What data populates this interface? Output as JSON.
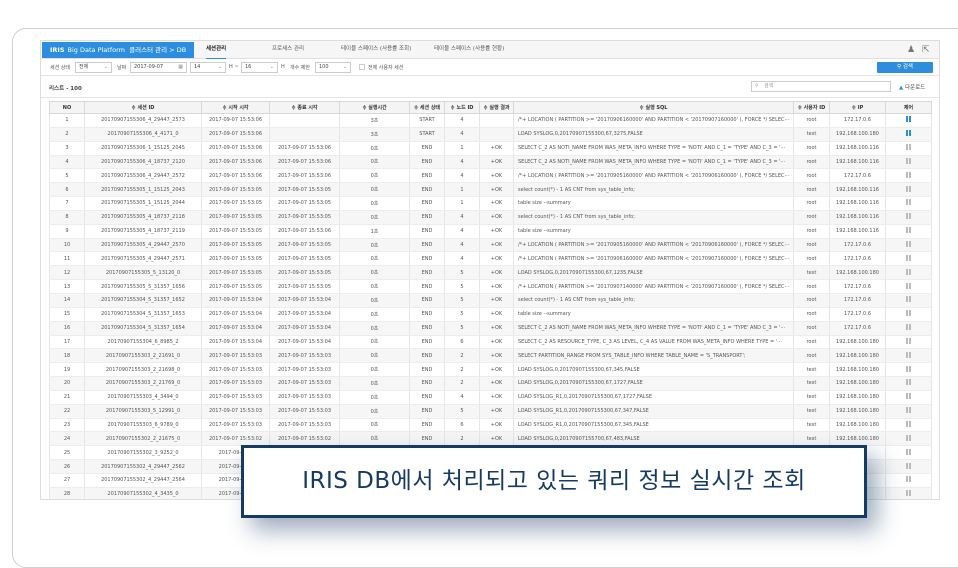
{
  "header": {
    "logo": "IRIS",
    "platform": "Big Data Platform",
    "breadcrumb_cluster": "클러스터 관리",
    "breadcrumb_sep": ">",
    "breadcrumb_db": "DB",
    "tabs": [
      {
        "label": "세션관리",
        "active": true
      },
      {
        "label": "프로세스 관리"
      },
      {
        "label": "테이블 스페이스 (사용률 조회)"
      },
      {
        "label": "테이블 스페이스 (사용률 현황)"
      }
    ],
    "user_icon": "user-icon",
    "logout_icon": "logout-icon"
  },
  "filter": {
    "session_state_label": "세션 상태",
    "session_state_value": "전체",
    "date_label": "날짜",
    "date_value": "2017-09-07",
    "hour_from": "14",
    "hour_sep": "H ~",
    "hour_to": "16",
    "hour_unit": "H",
    "limit_label": "개수 제한",
    "limit_value": "100",
    "all_users_label": "전체 사용자 세션",
    "search_button": "검색"
  },
  "list": {
    "title": "리스트 - 100",
    "search_placeholder": "검색",
    "download": "다운로드"
  },
  "table": {
    "columns": [
      "NO",
      "세션 ID",
      "시작 시각",
      "종료 시각",
      "실행시간",
      "세션 상태",
      "노드 ID",
      "실행 결과",
      "실행 SQL",
      "사용자 ID",
      "IP",
      "제어"
    ],
    "sortable_prefix": "≑",
    "rows": [
      [
        "1",
        "20170907155306_4_29447_2573",
        "2017-09-07 15:53:06",
        "",
        "3초",
        "START",
        "4",
        "",
        "/*+ LOCATION ( PARTITION >= '20170906160000' AND PARTITION < '20170907160000' ), FORCE */ SELEC···",
        "root",
        "172.17.0.6",
        "active"
      ],
      [
        "2",
        "20170907155306_4_4171_0",
        "2017-09-07 15:53:06",
        "",
        "3초",
        "START",
        "4",
        "",
        "LOAD SYSLOG,0,20170907155300,67,3275,FALSE",
        "test",
        "192.168.100.180",
        "active"
      ],
      [
        "3",
        "20170907155306_1_15125_2045",
        "2017-09-07 15:53:06",
        "2017-09-07 15:53:06",
        "0초",
        "END",
        "1",
        "+OK",
        "SELECT C_2 AS NOTI_NAME FROM WAS_META_INFO WHERE TYPE = 'NOTI' AND C_1 = 'TYPE' AND C_3 = '···",
        "root",
        "192.168.100.116",
        "idle"
      ],
      [
        "4",
        "20170907155306_4_18737_2120",
        "2017-09-07 15:53:06",
        "2017-09-07 15:53:06",
        "0초",
        "END",
        "4",
        "+OK",
        "SELECT C_2 AS NOTI_NAME FROM WAS_META_INFO WHERE TYPE = 'NOTI' AND C_1 = 'TYPE' AND C_3 = '···",
        "root",
        "192.168.100.116",
        "idle"
      ],
      [
        "5",
        "20170907155306_4_29447_2572",
        "2017-09-07 15:53:06",
        "2017-09-07 15:53:06",
        "0초",
        "END",
        "4",
        "+OK",
        "/*+ LOCATION ( PARTITION >= '20170905160000' AND PARTITION < '20170906160000' ), FORCE */ SELEC···",
        "root",
        "172.17.0.6",
        "idle"
      ],
      [
        "6",
        "20170907155305_1_15125_2043",
        "2017-09-07 15:53:05",
        "2017-09-07 15:53:05",
        "0초",
        "END",
        "1",
        "+OK",
        "select count(*) - 1 AS CNT from sys_table_info;",
        "root",
        "192.168.100.116",
        "idle"
      ],
      [
        "7",
        "20170907155305_1_15125_2044",
        "2017-09-07 15:53:05",
        "2017-09-07 15:53:05",
        "0초",
        "END",
        "1",
        "+OK",
        "table size --summary",
        "root",
        "192.168.100.116",
        "idle"
      ],
      [
        "8",
        "20170907155305_4_18737_2118",
        "2017-09-07 15:53:05",
        "2017-09-07 15:53:05",
        "0초",
        "END",
        "4",
        "+OK",
        "select count(*) - 1 AS CNT from sys_table_info;",
        "root",
        "192.168.100.116",
        "idle"
      ],
      [
        "9",
        "20170907155305_4_18737_2119",
        "2017-09-07 15:53:05",
        "2017-09-07 15:53:06",
        "1초",
        "END",
        "4",
        "+OK",
        "table size --summary",
        "root",
        "192.168.100.116",
        "idle"
      ],
      [
        "10",
        "20170907155305_4_29447_2570",
        "2017-09-07 15:53:05",
        "2017-09-07 15:53:05",
        "0초",
        "END",
        "4",
        "+OK",
        "/*+ LOCATION ( PARTITION >= '20170905160000' AND PARTITION < '20170906160000' ), FORCE */ SELEC···",
        "root",
        "172.17.0.6",
        "idle"
      ],
      [
        "11",
        "20170907155305_4_29447_2571",
        "2017-09-07 15:53:05",
        "2017-09-07 15:53:05",
        "0초",
        "END",
        "4",
        "+OK",
        "/*+ LOCATION ( PARTITION >= '20170906160000' AND PARTITION < '20170907160000' ), FORCE */ SELEC···",
        "root",
        "172.17.0.6",
        "idle"
      ],
      [
        "12",
        "20170907155305_5_13120_0",
        "2017-09-07 15:53:05",
        "2017-09-07 15:53:05",
        "0초",
        "END",
        "5",
        "+OK",
        "LOAD SYSLOG,0,20170907155300,67,1235,FALSE",
        "test",
        "192.168.100.180",
        "idle"
      ],
      [
        "13",
        "20170907155305_5_31357_1656",
        "2017-09-07 15:53:05",
        "2017-09-07 15:53:05",
        "0초",
        "END",
        "5",
        "+OK",
        "/*+ LOCATION ( PARTITION >= '20170907140000' AND PARTITION < '20170907160000' ), FORCE */ SELEC···",
        "root",
        "172.17.0.6",
        "idle"
      ],
      [
        "14",
        "20170907155304_5_31357_1652",
        "2017-09-07 15:53:04",
        "2017-09-07 15:53:04",
        "0초",
        "END",
        "5",
        "+OK",
        "select count(*) - 1 AS CNT from sys_table_info;",
        "root",
        "172.17.0.6",
        "idle"
      ],
      [
        "15",
        "20170907155304_5_31357_1653",
        "2017-09-07 15:53:04",
        "2017-09-07 15:53:04",
        "0초",
        "END",
        "5",
        "+OK",
        "table size --summary",
        "root",
        "172.17.0.6",
        "idle"
      ],
      [
        "16",
        "20170907155304_5_31357_1654",
        "2017-09-07 15:53:04",
        "2017-09-07 15:53:04",
        "0초",
        "END",
        "5",
        "+OK",
        "SELECT C_2 AS NOTI_NAME FROM WAS_META_INFO WHERE TYPE = 'NOTI' AND C_1 = 'TYPE' AND C_3 = '···",
        "root",
        "172.17.0.6",
        "idle"
      ],
      [
        "17",
        "20170907155304_6_8985_2",
        "2017-09-07 15:53:04",
        "2017-09-07 15:53:04",
        "0초",
        "END",
        "6",
        "+OK",
        "SELECT C_2 AS RESOURCE_TYPE, C_3 AS LEVEL, C_4 AS VALUE FROM WAS_META_INFO WHERE TYPE = '···",
        "root",
        "192.168.100.180",
        "idle"
      ],
      [
        "18",
        "20170907155303_2_21691_0",
        "2017-09-07 15:53:03",
        "2017-09-07 15:53:03",
        "0초",
        "END",
        "2",
        "+OK",
        "SELECT PARTITION_RANGE FROM SYS_TABLE_INFO WHERE TABLE_NAME = 'S_TRANSPORT';",
        "root",
        "192.168.100.180",
        "idle"
      ],
      [
        "19",
        "20170907155303_2_21698_0",
        "2017-09-07 15:53:03",
        "2017-09-07 15:53:03",
        "0초",
        "END",
        "2",
        "+OK",
        "LOAD SYSLOG,0,20170907155300,67,345,FALSE",
        "test",
        "192.168.100.180",
        "idle"
      ],
      [
        "20",
        "20170907155303_2_21769_0",
        "2017-09-07 15:53:03",
        "2017-09-07 15:53:03",
        "0초",
        "END",
        "2",
        "+OK",
        "LOAD SYSLOG,0,20170907155300,67,1727,FALSE",
        "test",
        "192.168.100.180",
        "idle"
      ],
      [
        "21",
        "20170907155303_4_3494_0",
        "2017-09-07 15:53:03",
        "2017-09-07 15:53:03",
        "0초",
        "END",
        "4",
        "+OK",
        "LOAD SYSLOG_R1,0,20170907155300,67,1727,FALSE",
        "test",
        "192.168.100.180",
        "idle"
      ],
      [
        "22",
        "20170907155303_5_12991_0",
        "2017-09-07 15:53:03",
        "2017-09-07 15:53:03",
        "0초",
        "END",
        "5",
        "+OK",
        "LOAD SYSLOG_R1,0,20170907155300,67,347,FALSE",
        "test",
        "192.168.100.180",
        "idle"
      ],
      [
        "23",
        "20170907155303_6_9789_0",
        "2017-09-07 15:53:03",
        "2017-09-07 15:53:03",
        "0초",
        "END",
        "6",
        "+OK",
        "LOAD SYSLOG_R1,0,20170907155300,67,345,FALSE",
        "test",
        "192.168.100.180",
        "idle"
      ],
      [
        "24",
        "20170907155302_2_21675_0",
        "2017-09-07 15:53:02",
        "2017-09-07 15:53:02",
        "0초",
        "END",
        "2",
        "+OK",
        "LOAD SYSLOG,0,20170907155700,67,483,FALSE",
        "test",
        "192.168.100.180",
        "idle"
      ],
      [
        "25",
        "20170907155302_3_9252_0",
        "2017-09-07 1",
        "",
        "",
        "",
        "",
        "",
        "",
        "",
        "180",
        "idle"
      ],
      [
        "26",
        "20170907155302_4_29447_2562",
        "2017-09-07 1",
        "",
        "",
        "",
        "",
        "",
        "",
        "",
        "6",
        "idle"
      ],
      [
        "27",
        "20170907155302_4_29447_2564",
        "2017-09-07 1",
        "",
        "",
        "",
        "",
        "",
        "",
        "",
        "6",
        "idle"
      ],
      [
        "28",
        "20170907155302_4_3435_0",
        "2017-09-07 1",
        "",
        "",
        "",
        "",
        "",
        "",
        "",
        "180",
        "idle"
      ]
    ]
  },
  "caption": "IRIS DB에서 처리되고 있는 쿼리 정보 실시간 조회",
  "colors": {
    "accent": "#2d8ee0",
    "caption": "#163b63"
  }
}
